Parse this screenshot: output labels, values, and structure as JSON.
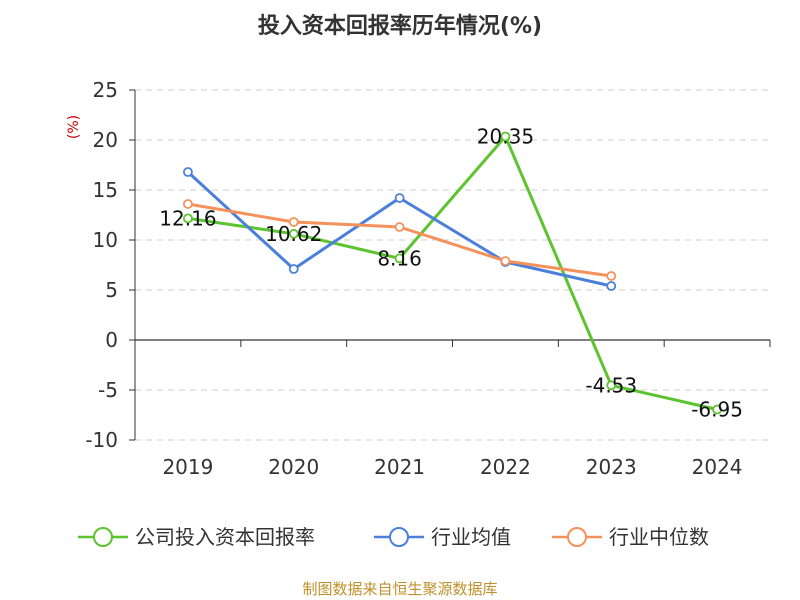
{
  "chart_data": {
    "type": "line",
    "title": "投入资本回报率历年情况(%)",
    "ylabel": "(%)",
    "xlabel": "",
    "categories": [
      "2019",
      "2020",
      "2021",
      "2022",
      "2023",
      "2024"
    ],
    "ylim": [
      -10,
      25
    ],
    "yticks": [
      25,
      20,
      15,
      10,
      5,
      0,
      -5,
      -10
    ],
    "grid": true,
    "legend_position": "bottom",
    "series": [
      {
        "name": "公司投入资本回报率",
        "color": "#5cc42f",
        "values": [
          12.16,
          10.62,
          8.16,
          20.35,
          -4.53,
          -6.95
        ],
        "labels": [
          "12.16",
          "10.62",
          "8.16",
          "20.35",
          "-4.53",
          "-6.95"
        ]
      },
      {
        "name": "行业均值",
        "color": "#4a7fdc",
        "values": [
          16.8,
          7.1,
          14.2,
          7.8,
          5.4,
          null
        ]
      },
      {
        "name": "行业中位数",
        "color": "#f5915a",
        "values": [
          13.6,
          11.8,
          11.3,
          7.9,
          6.4,
          null
        ]
      }
    ]
  },
  "colors": {
    "unit_label": "#cc0000",
    "source": "#c0902a",
    "grid": "#cccccc",
    "axis": "#333333"
  },
  "source": "制图数据来自恒生聚源数据库"
}
